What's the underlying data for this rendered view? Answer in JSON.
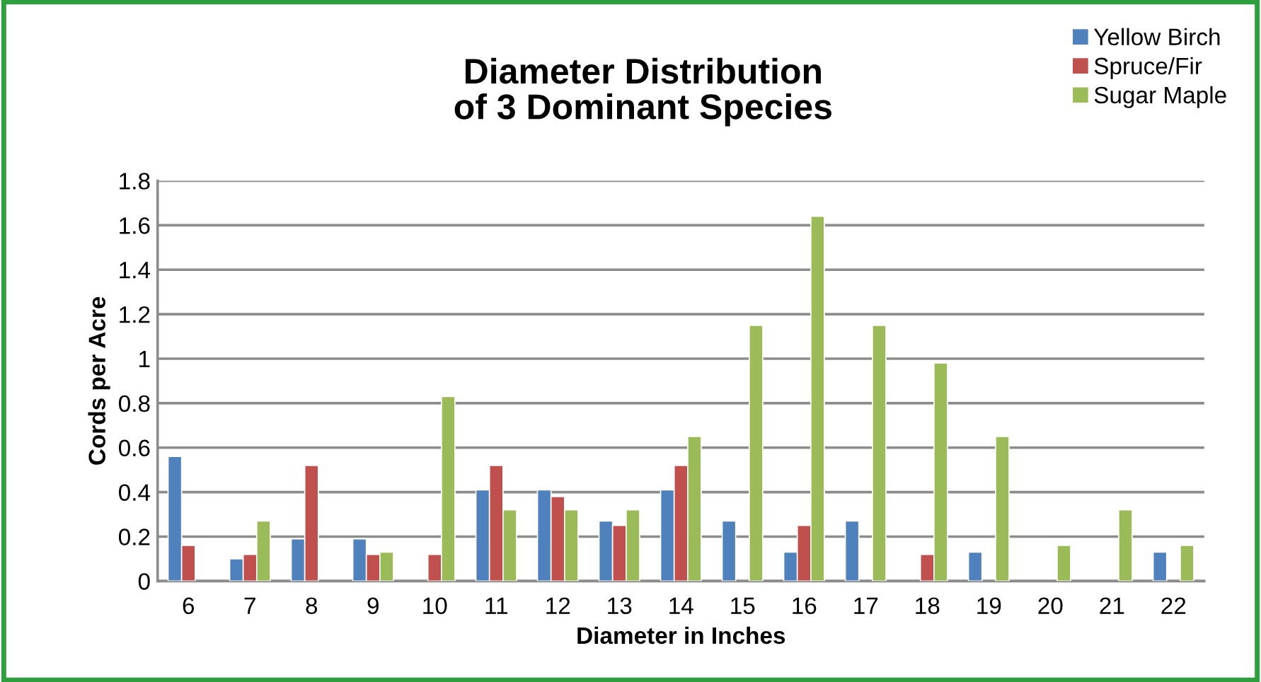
{
  "chart_data": {
    "type": "bar",
    "title": "Diameter Distribution\nof 3 Dominant Species",
    "xlabel": "Diameter in Inches",
    "ylabel": "Cords per Acre",
    "categories": [
      "6",
      "7",
      "8",
      "9",
      "10",
      "11",
      "12",
      "13",
      "14",
      "15",
      "16",
      "17",
      "18",
      "19",
      "20",
      "21",
      "22"
    ],
    "series": [
      {
        "name": "Yellow Birch",
        "color": "#4f81bd",
        "values": [
          0.56,
          0.1,
          0.19,
          0.19,
          null,
          0.41,
          0.41,
          0.27,
          0.41,
          0.27,
          0.13,
          0.27,
          null,
          0.13,
          null,
          null,
          0.13
        ]
      },
      {
        "name": "Spruce/Fir",
        "color": "#c0504d",
        "values": [
          0.16,
          0.12,
          0.52,
          0.12,
          0.12,
          0.52,
          0.38,
          0.25,
          0.52,
          null,
          0.25,
          null,
          0.12,
          null,
          null,
          null,
          null
        ]
      },
      {
        "name": "Sugar Maple",
        "color": "#9bbb59",
        "values": [
          null,
          0.27,
          null,
          0.13,
          0.83,
          0.32,
          0.32,
          0.32,
          0.65,
          1.15,
          1.64,
          1.15,
          0.98,
          0.65,
          0.16,
          0.32,
          0.16
        ]
      }
    ],
    "ylim": [
      0,
      1.8
    ],
    "yticks": [
      0,
      0.2,
      0.4,
      0.6,
      0.8,
      1,
      1.2,
      1.4,
      1.6,
      1.8
    ],
    "grid": "y",
    "legend": "top right"
  }
}
